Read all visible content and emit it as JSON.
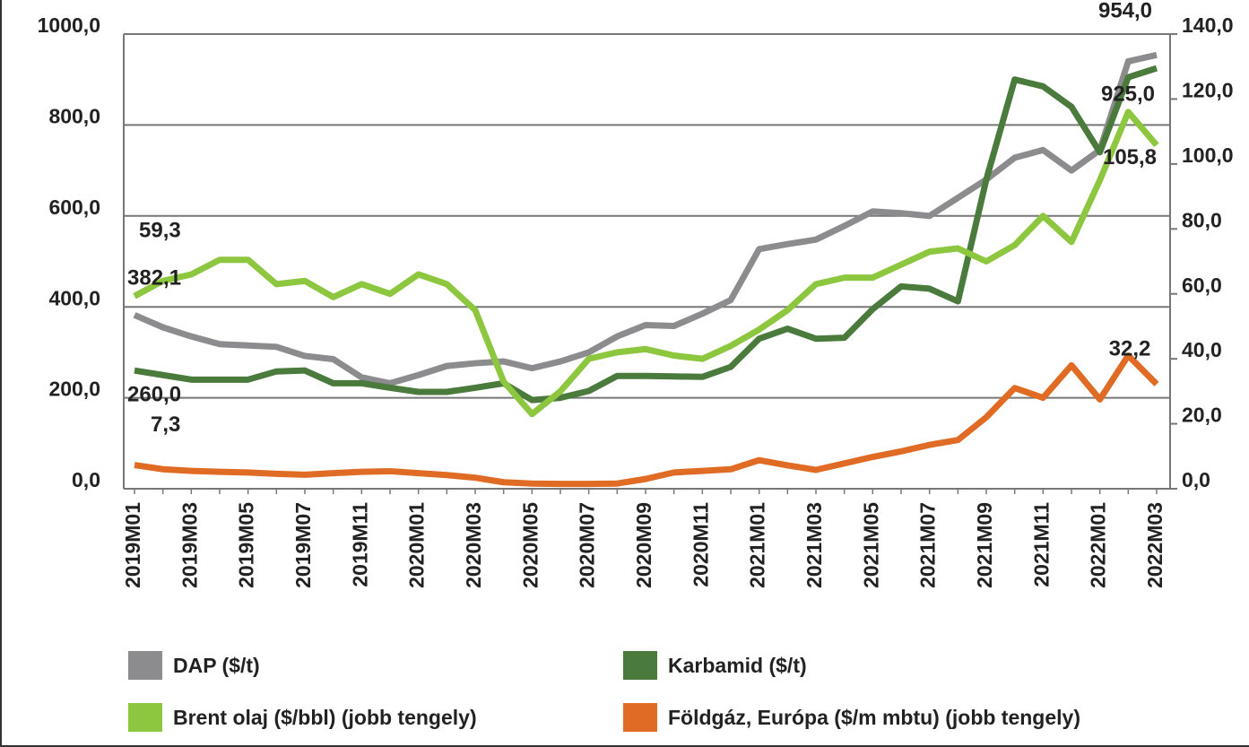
{
  "chart_data": {
    "type": "line",
    "categories": [
      "2019M01",
      null,
      "2019M03",
      null,
      "2019M05",
      null,
      "2019M07",
      null,
      "2019M11",
      null,
      "2020M01",
      null,
      "2020M03",
      null,
      "2020M05",
      null,
      "2020M07",
      null,
      "2020M09",
      null,
      "2020M11",
      null,
      "2021M01",
      null,
      "2021M03",
      null,
      "2021M05",
      null,
      "2021M07",
      null,
      "2021M09",
      null,
      "2021M11",
      null,
      "2022M01",
      null,
      "2022M03"
    ],
    "series": [
      {
        "name": "DAP ($/t)",
        "color": "#8c8c8e",
        "values": [
          382.1,
          355,
          335,
          318,
          315,
          312,
          292,
          285,
          245,
          232,
          250,
          270,
          276,
          280,
          265,
          280,
          300,
          335,
          360,
          358,
          385,
          415,
          527,
          538,
          548,
          578,
          610,
          606,
          600,
          640,
          680,
          728,
          745,
          700,
          745,
          940,
          954
        ],
        "value_labels": [
          "382,1",
          null,
          null,
          null,
          null,
          null,
          null,
          null,
          null,
          null,
          null,
          null,
          null,
          null,
          null,
          null,
          null,
          null,
          null,
          null,
          null,
          null,
          null,
          null,
          null,
          null,
          null,
          null,
          null,
          null,
          null,
          null,
          null,
          null,
          null,
          null,
          "954,0"
        ]
      },
      {
        "name": "Karbamid ($/t)",
        "color": "#4a7a3c",
        "values": [
          260,
          250,
          240,
          240,
          240,
          258,
          260,
          232,
          232,
          222,
          213,
          213,
          222,
          232,
          195,
          200,
          215,
          248,
          248,
          247,
          246,
          268,
          330,
          352,
          330,
          332,
          395,
          445,
          440,
          412,
          680,
          900,
          885,
          840,
          740,
          905,
          925
        ],
        "value_labels": [
          "260,0",
          null,
          null,
          null,
          null,
          null,
          null,
          null,
          null,
          null,
          null,
          null,
          null,
          null,
          null,
          null,
          null,
          null,
          null,
          null,
          null,
          null,
          null,
          null,
          null,
          null,
          null,
          null,
          null,
          null,
          null,
          null,
          null,
          null,
          null,
          null,
          "925,0"
        ]
      },
      {
        "name": "Brent olaj ($/bbl) (jobb tengely)",
        "color": "#8dc63f",
        "axis": "y2",
        "values": [
          59.3,
          64,
          66,
          70.5,
          70.5,
          63,
          64,
          59,
          63,
          60,
          66,
          63,
          55,
          33,
          23,
          30,
          40,
          42,
          43,
          41,
          40,
          44,
          49,
          55,
          63,
          65,
          65,
          69,
          73,
          74,
          70,
          75,
          84,
          76,
          95,
          116,
          105.8
        ],
        "value_labels": [
          "59,3",
          null,
          null,
          null,
          null,
          null,
          null,
          null,
          null,
          null,
          null,
          null,
          null,
          null,
          null,
          null,
          null,
          null,
          null,
          null,
          null,
          null,
          null,
          null,
          null,
          null,
          null,
          null,
          null,
          null,
          null,
          null,
          null,
          null,
          null,
          null,
          "105,8"
        ]
      },
      {
        "name": "Földgáz, Európa ($/m mbtu) (jobb tengely)",
        "color": "#e06b25",
        "axis": "y2",
        "values": [
          7.3,
          6,
          5.5,
          5.2,
          5,
          4.6,
          4.3,
          4.8,
          5.2,
          5.4,
          4.8,
          4.2,
          3.4,
          2,
          1.6,
          1.5,
          1.5,
          1.6,
          3,
          5,
          5.5,
          6,
          8.8,
          7.2,
          5.8,
          7.8,
          9.8,
          11.5,
          13.5,
          15,
          22,
          31,
          28,
          38,
          27.5,
          41,
          32.2
        ],
        "value_labels": [
          "7,3",
          null,
          null,
          null,
          null,
          null,
          null,
          null,
          null,
          null,
          null,
          null,
          null,
          null,
          null,
          null,
          null,
          null,
          null,
          null,
          null,
          null,
          null,
          null,
          null,
          null,
          null,
          null,
          null,
          null,
          null,
          null,
          null,
          null,
          null,
          null,
          "32,2"
        ]
      }
    ],
    "ylim": [
      0,
      1000
    ],
    "yticks": [
      {
        "value": 0,
        "label": "0,0"
      },
      {
        "value": 200,
        "label": "200,0"
      },
      {
        "value": 400,
        "label": "400,0"
      },
      {
        "value": 600,
        "label": "600,0"
      },
      {
        "value": 800,
        "label": "800,0"
      },
      {
        "value": 1000,
        "label": "1000,0"
      }
    ],
    "y2lim": [
      0,
      140
    ],
    "y2ticks": [
      {
        "value": 0,
        "label": "0,0"
      },
      {
        "value": 20,
        "label": "20,0"
      },
      {
        "value": 40,
        "label": "40,0"
      },
      {
        "value": 60,
        "label": "60,0"
      },
      {
        "value": 80,
        "label": "80,0"
      },
      {
        "value": 100,
        "label": "100,0"
      },
      {
        "value": 120,
        "label": "120,0"
      },
      {
        "value": 140,
        "label": "140,0"
      }
    ],
    "grid": true,
    "legend": "bottom"
  }
}
